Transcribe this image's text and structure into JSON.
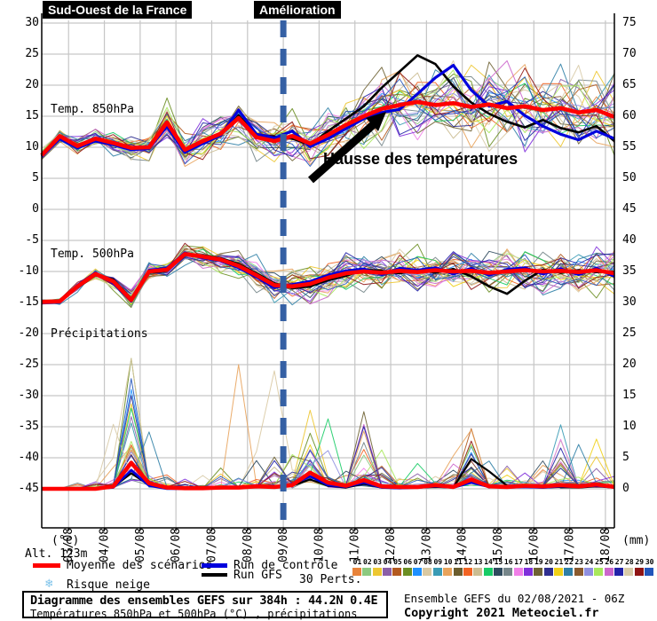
{
  "header": {
    "region_label": "Sud-Ouest de la France",
    "annotation_box": "Amélioration"
  },
  "annotations": {
    "temp_rise": "Hausse des températures"
  },
  "panels": {
    "t850_label": "Temp. 850hPa",
    "t500_label": "Temp. 500hPa",
    "precip_label": "Précipitations"
  },
  "axes": {
    "left_unit": "(°c)",
    "right_unit": "(mm)",
    "altitude": "Alt. 123m",
    "left_ticks": [
      30,
      25,
      20,
      15,
      10,
      5,
      0,
      -5,
      -10,
      -15,
      -20,
      -25,
      -30,
      -35,
      -40,
      -45
    ],
    "right_ticks": [
      75,
      70,
      65,
      60,
      55,
      50,
      45,
      40,
      35,
      30,
      25,
      20,
      15,
      10,
      5,
      0
    ],
    "x_labels": [
      "03/08",
      "04/08",
      "05/08",
      "06/08",
      "07/08",
      "08/08",
      "09/08",
      "10/08",
      "11/08",
      "12/08",
      "13/08",
      "14/08",
      "15/08",
      "16/08",
      "17/08",
      "18/08"
    ]
  },
  "legend": {
    "mean_label": "Moyenne des scénarios",
    "mean_color": "#ff0000",
    "control_label": "Run de contrôle",
    "control_color": "#0000dd",
    "gfs_label": "Run GFS",
    "gfs_color": "#000000",
    "perts_label": "30 Perts.",
    "snow_label": "Risque neige",
    "snow_icon": "❄"
  },
  "perturbations": {
    "numbers": [
      "01",
      "02",
      "03",
      "04",
      "05",
      "06",
      "07",
      "08",
      "09",
      "10",
      "11",
      "12",
      "13",
      "14",
      "15",
      "16",
      "17",
      "18",
      "19",
      "20",
      "21",
      "22",
      "23",
      "24",
      "25",
      "26",
      "27",
      "28",
      "29",
      "30"
    ],
    "colors": [
      "#E8833A",
      "#8CC97F",
      "#EDC731",
      "#8B5FA7",
      "#B35A1F",
      "#6B8E23",
      "#1E90FF",
      "#D9C9A3",
      "#3A9BB5",
      "#E8A35C",
      "#6B5D2E",
      "#F26322",
      "#CBBD92",
      "#18CC66",
      "#2F4A5E",
      "#76868A",
      "#F07FE8",
      "#7F2FDB",
      "#6E6233",
      "#2F2F8F",
      "#EFD018",
      "#2F7FA6",
      "#8A5A2E",
      "#8F8FE0",
      "#A8E85C",
      "#CC66CC",
      "#2222A8",
      "#D8CBA8",
      "#8F1414",
      "#2255BB"
    ]
  },
  "footer": {
    "box_line1": "Diagramme des ensembles GEFS sur 384h : 44.2N 0.4E",
    "box_line2": "Températures 850hPa et 500hPa (°C) , précipitations (mm)",
    "run_info": "Ensemble GEFS du 02/08/2021 - 06Z",
    "copyright": "Copyright 2021 Meteociel.fr"
  },
  "chart_data": {
    "type": "line",
    "title": "Diagramme des ensembles GEFS sur 384h : 44.2N 0.4E",
    "run": "02/08/2021 06Z",
    "duration_hours": 384,
    "x_step_days": 0.5,
    "x_start_label": "02/08 06Z",
    "x_tick_labels": [
      "03/08",
      "04/08",
      "05/08",
      "06/08",
      "07/08",
      "08/08",
      "09/08",
      "10/08",
      "11/08",
      "12/08",
      "13/08",
      "14/08",
      "15/08",
      "16/08",
      "17/08",
      "18/08"
    ],
    "left_axis_range": [
      -45,
      30
    ],
    "right_axis_range_mm": [
      0,
      75
    ],
    "grid": true,
    "event_line_day": 6.75,
    "panels": [
      {
        "name": "temp_850hPa",
        "unit": "°C",
        "series": [
          {
            "name": "Moyenne des scénarios",
            "values": [
              8.7,
              11.8,
              10.2,
              11.4,
              10.7,
              9.9,
              10.0,
              14.0,
              9.6,
              11.0,
              12.2,
              14.7,
              11.6,
              11.0,
              11.8,
              10.6,
              12.0,
              13.6,
              15.0,
              16.2,
              16.8,
              17.3,
              16.8,
              17.1,
              16.5,
              16.9,
              16.3,
              16.6,
              16.0,
              16.3,
              15.6,
              16.0,
              14.9
            ]
          },
          {
            "name": "Run de contrôle",
            "values": [
              8.5,
              11.4,
              9.9,
              11.0,
              10.4,
              9.6,
              9.8,
              13.4,
              9.2,
              10.6,
              11.9,
              16.0,
              12.1,
              11.5,
              12.6,
              10.1,
              11.4,
              13.0,
              14.6,
              15.6,
              16.1,
              18.6,
              21.2,
              23.2,
              19.2,
              16.6,
              17.4,
              15.1,
              13.4,
              12.1,
              11.2,
              12.6,
              11.4
            ]
          },
          {
            "name": "Run GFS",
            "values": [
              8.6,
              11.6,
              10.0,
              11.2,
              10.5,
              9.8,
              9.9,
              13.7,
              9.4,
              10.8,
              12.0,
              15.1,
              11.9,
              11.7,
              11.4,
              10.4,
              12.6,
              14.6,
              16.6,
              19.6,
              22.2,
              24.8,
              23.4,
              19.8,
              17.2,
              15.4,
              14.1,
              13.2,
              14.4,
              13.1,
              12.4,
              13.4,
              11.0
            ]
          }
        ],
        "ensemble_spread": [
          0.9,
          1.1,
          1.2,
          1.4,
          1.6,
          1.9,
          2.2,
          2.6,
          2.6,
          2.8,
          3.2,
          3.6,
          3.4,
          3.2,
          3.4,
          3.6,
          4.0,
          4.4,
          4.8,
          5.0,
          5.2,
          5.4,
          5.5,
          5.8,
          6.0,
          6.0,
          6.0,
          6.0,
          6.0,
          6.0,
          6.0,
          6.0,
          6.0
        ]
      },
      {
        "name": "temp_500hPa",
        "unit": "°C",
        "series": [
          {
            "name": "Moyenne des scénarios",
            "values": [
              -14.9,
              -14.8,
              -12.4,
              -10.4,
              -11.6,
              -14.6,
              -10.0,
              -9.7,
              -7.2,
              -7.6,
              -8.1,
              -9.1,
              -10.6,
              -12.2,
              -12.4,
              -12.0,
              -11.0,
              -10.3,
              -10.0,
              -10.2,
              -9.9,
              -10.1,
              -9.8,
              -10.0,
              -9.9,
              -10.2,
              -10.0,
              -9.8,
              -10.0,
              -9.9,
              -10.1,
              -9.8,
              -10.3
            ]
          },
          {
            "name": "Run de contrôle",
            "values": [
              -15.0,
              -14.9,
              -12.2,
              -10.2,
              -11.9,
              -14.8,
              -9.8,
              -9.5,
              -7.0,
              -7.8,
              -8.3,
              -9.4,
              -10.9,
              -12.6,
              -12.1,
              -11.6,
              -10.6,
              -9.9,
              -9.6,
              -10.5,
              -9.5,
              -9.8,
              -9.4,
              -10.4,
              -9.5,
              -10.6,
              -9.7,
              -9.4,
              -10.4,
              -9.6,
              -10.5,
              -9.5,
              -10.8
            ]
          },
          {
            "name": "Run GFS",
            "values": [
              -14.8,
              -14.7,
              -12.6,
              -10.6,
              -11.3,
              -14.4,
              -10.2,
              -9.9,
              -7.4,
              -7.4,
              -7.9,
              -8.8,
              -10.3,
              -11.9,
              -12.7,
              -12.4,
              -11.4,
              -10.7,
              -9.7,
              -9.9,
              -10.3,
              -9.7,
              -10.2,
              -9.6,
              -10.8,
              -12.4,
              -13.6,
              -11.5,
              -9.7,
              -10.2,
              -9.8,
              -10.1,
              -10.0
            ]
          }
        ],
        "ensemble_spread": [
          0.4,
          0.5,
          0.7,
          0.9,
          1.1,
          1.4,
          1.4,
          1.4,
          1.5,
          1.7,
          1.9,
          2.0,
          2.4,
          2.8,
          3.0,
          3.0,
          2.9,
          2.9,
          2.9,
          3.0,
          3.0,
          3.0,
          3.0,
          3.3,
          3.4,
          3.4,
          3.4,
          3.4,
          3.5,
          3.5,
          3.5,
          3.5,
          3.5
        ]
      },
      {
        "name": "precipitations",
        "unit": "mm",
        "series": [
          {
            "name": "Moyenne des scénarios",
            "values": [
              0,
              0,
              0,
              0,
              0.4,
              4.2,
              0.9,
              0.2,
              0.1,
              0.1,
              0.2,
              0.2,
              0.4,
              0.3,
              0.6,
              2.6,
              1.0,
              0.5,
              1.4,
              0.4,
              0.3,
              0.3,
              0.6,
              0.3,
              1.5,
              0.4,
              0.3,
              0.5,
              0.4,
              0.6,
              0.4,
              0.7,
              0.3
            ]
          },
          {
            "name": "Run de contrôle",
            "values": [
              0,
              0,
              0,
              0,
              0.2,
              3.0,
              0.5,
              0,
              0,
              0,
              0.1,
              0.2,
              0.5,
              0.2,
              0.8,
              2.0,
              0.6,
              0.3,
              1.0,
              0.2,
              0.1,
              0.2,
              0.4,
              0.2,
              1.0,
              0.3,
              0.2,
              0.3,
              0.2,
              0.4,
              0.3,
              0.5,
              0.2
            ]
          },
          {
            "name": "Run GFS",
            "values": [
              0,
              0,
              0,
              0,
              0.3,
              2.5,
              0.6,
              0.1,
              0,
              0,
              0.1,
              0.1,
              0.3,
              0.2,
              0.5,
              1.5,
              0.5,
              0.2,
              0.8,
              0.2,
              0.1,
              0.2,
              0.3,
              0.2,
              4.8,
              2.8,
              0.5,
              0.3,
              0.2,
              0.3,
              0.2,
              0.4,
              0.2
            ]
          }
        ],
        "ensemble_spread": [
          0.2,
          0.3,
          0.4,
          0.6,
          4.0,
          9.0,
          4.5,
          1.2,
          0.6,
          1.0,
          1.2,
          1.2,
          2.2,
          2.0,
          3.5,
          7.0,
          5.5,
          3.0,
          4.5,
          2.2,
          2.0,
          2.2,
          3.0,
          2.2,
          4.0,
          3.0,
          2.2,
          3.0,
          3.0,
          4.0,
          3.0,
          4.0,
          2.0
        ]
      }
    ]
  }
}
